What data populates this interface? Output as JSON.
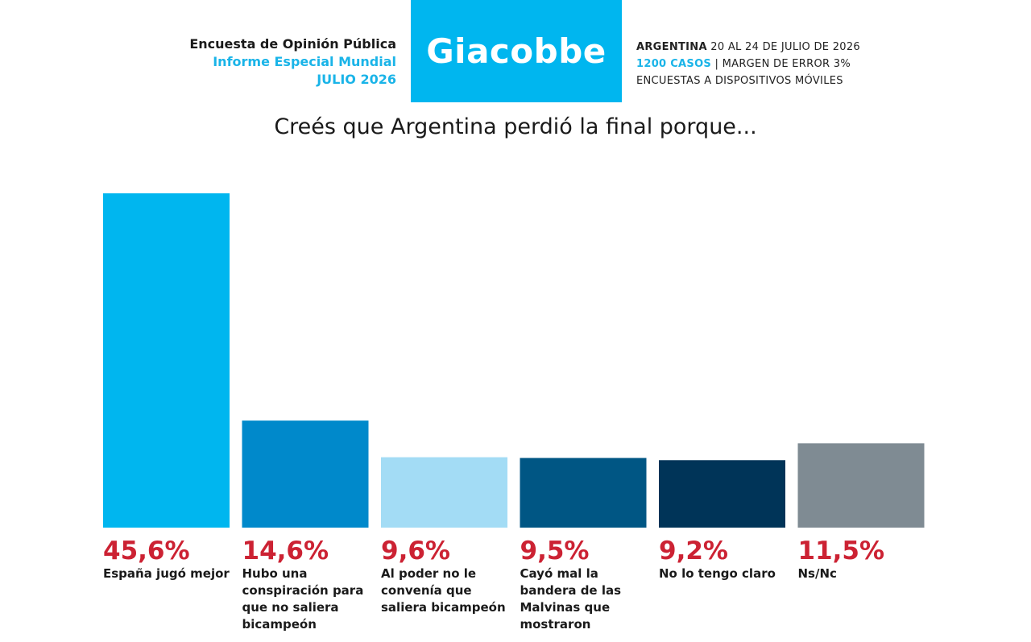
{
  "header": {
    "left_line1": "Encuesta de Opinión Pública",
    "left_line2": "Informe Especial Mundial",
    "left_line3": "JULIO 2026",
    "logo": "Giacobbe",
    "right_line1_bold": "ARGENTINA",
    "right_line1_rest": " 20 AL 24 DE JULIO DE 2026",
    "right_line2_cyan": "1200 CASOS",
    "right_line2_rest": " | MARGEN DE ERROR 3%",
    "right_line3": "ENCUESTAS A DISPOSITIVOS MÓVILES"
  },
  "chart_data": {
    "type": "bar",
    "title": "Creés que Argentina perdió la final porque...",
    "categories": [
      "España jugó mejor",
      "Hubo una conspiración para que no saliera bicampeón",
      "Al poder no le convenía que saliera bicampeón",
      "Cayó mal la bandera de las Malvinas que mostraron",
      "No lo tengo claro",
      "Ns/Nc"
    ],
    "values": [
      45.6,
      14.6,
      9.6,
      9.5,
      9.2,
      11.5
    ],
    "value_labels": [
      "45,6%",
      "14,6%",
      "9,6%",
      "9,5%",
      "9,2%",
      "11,5%"
    ],
    "colors": [
      "#00b6ef",
      "#0089cb",
      "#a3dcf5",
      "#005684",
      "#003458",
      "#7f8b93"
    ],
    "ylim": [
      0,
      45.6
    ],
    "grid": false,
    "legend": "none"
  }
}
